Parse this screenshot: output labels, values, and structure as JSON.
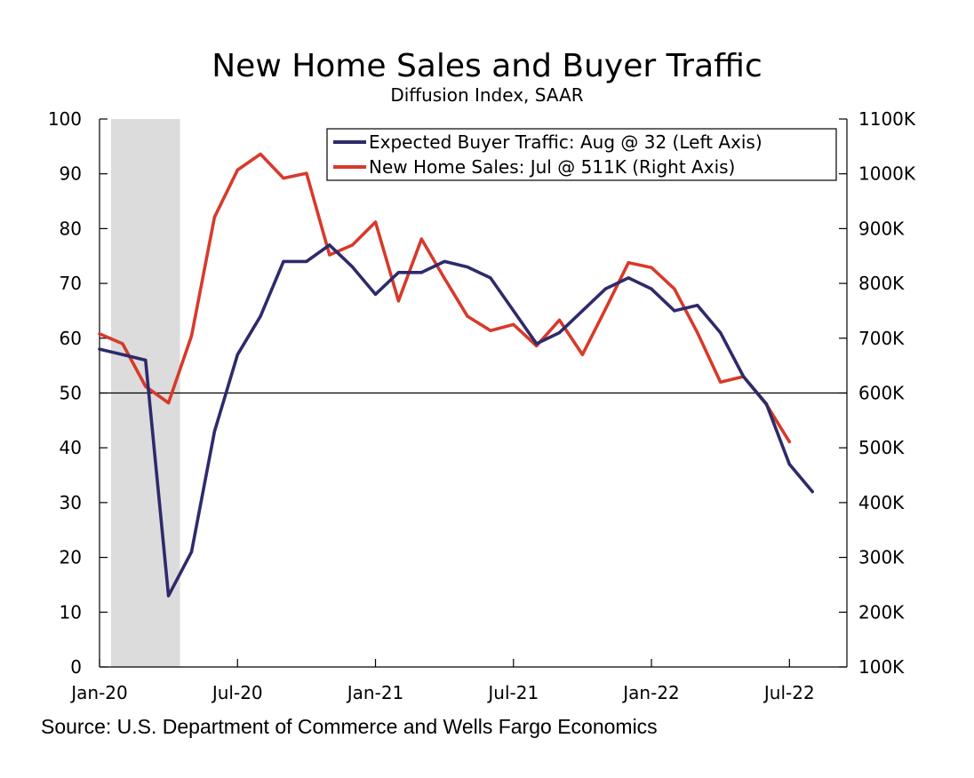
{
  "chart_data": {
    "type": "line",
    "title": "New Home Sales and Buyer Traffic",
    "subtitle": "Diffusion Index, SAAR",
    "source": "Source: U.S. Department of Commerce and Wells Fargo Economics",
    "x_tick_labels": [
      "Jan-20",
      "Jul-20",
      "Jan-21",
      "Jul-21",
      "Jan-22",
      "Jul-22"
    ],
    "x_tick_months": [
      0,
      6,
      12,
      18,
      24,
      30
    ],
    "x_range_months": [
      0,
      32.5
    ],
    "y_left": {
      "range": [
        0,
        100
      ],
      "ticks": [
        0,
        10,
        20,
        30,
        40,
        50,
        60,
        70,
        80,
        90,
        100
      ],
      "tick_labels": [
        "0",
        "10",
        "20",
        "30",
        "40",
        "50",
        "60",
        "70",
        "80",
        "90",
        "100"
      ]
    },
    "y_right": {
      "range": [
        100,
        1100
      ],
      "ticks": [
        100,
        200,
        300,
        400,
        500,
        600,
        700,
        800,
        900,
        1000,
        1100
      ],
      "tick_labels": [
        "100K",
        "200K",
        "300K",
        "400K",
        "500K",
        "600K",
        "700K",
        "800K",
        "900K",
        "1000K",
        "1100K"
      ]
    },
    "reference_line_left": 50,
    "recession_shading_months": [
      0.5,
      3.5
    ],
    "legend_position": "top-right",
    "grid": false,
    "series": [
      {
        "name": "Expected Buyer Traffic: Aug @ 32 (Left Axis)",
        "axis": "left",
        "color": "#2e2a6b",
        "months": [
          0,
          1,
          2,
          3,
          4,
          5,
          6,
          7,
          8,
          9,
          10,
          11,
          12,
          13,
          14,
          15,
          16,
          17,
          18,
          19,
          20,
          21,
          22,
          23,
          24,
          25,
          26,
          27,
          28,
          29,
          30,
          31
        ],
        "values": [
          58,
          57,
          56,
          13,
          21,
          43,
          57,
          64,
          74,
          74,
          77,
          73,
          68,
          72,
          72,
          74,
          73,
          71,
          65,
          59,
          61,
          65,
          69,
          71,
          69,
          65,
          66,
          61,
          53,
          48,
          37,
          32
        ]
      },
      {
        "name": "New Home Sales: Jul @ 511K (Right Axis)",
        "axis": "right",
        "color": "#d73a2a",
        "months": [
          0,
          1,
          2,
          3,
          4,
          5,
          6,
          7,
          8,
          9,
          10,
          11,
          12,
          13,
          14,
          15,
          16,
          17,
          18,
          19,
          20,
          21,
          22,
          23,
          24,
          25,
          26,
          27,
          28,
          29,
          30
        ],
        "values": [
          708,
          690,
          612,
          582,
          704,
          921,
          1007,
          1036,
          992,
          1001,
          852,
          870,
          912,
          768,
          881,
          809,
          740,
          714,
          725,
          686,
          733,
          670,
          753,
          838,
          829,
          790,
          710,
          620,
          630,
          579,
          511
        ]
      }
    ]
  }
}
